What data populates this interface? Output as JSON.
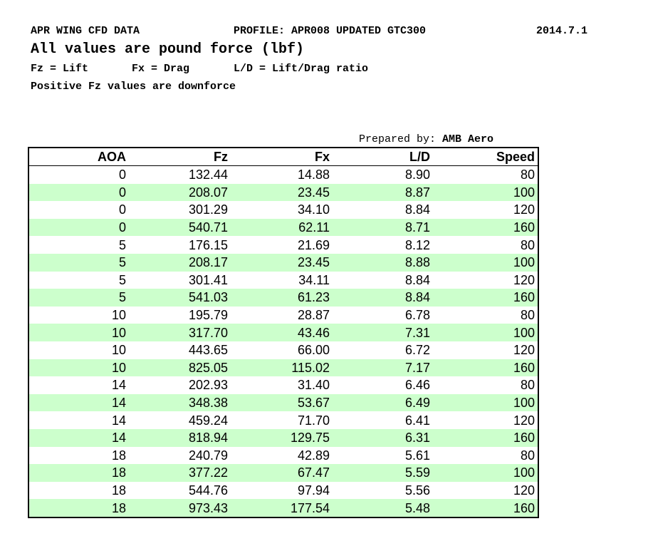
{
  "header": {
    "title": "APR WING CFD DATA",
    "profile": "PROFILE: APR008 UPDATED GTC300",
    "date": "2014.7.1",
    "units": "All values are pound force (lbf)",
    "legend": [
      "Fz = Lift",
      "Fx = Drag",
      "L/D = Lift/Drag ratio"
    ],
    "note": "Positive Fz values are downforce"
  },
  "prepared": {
    "label": "Prepared by:",
    "name": "AMB Aero"
  },
  "table": {
    "columns": [
      "AOA",
      "Fz",
      "Fx",
      "L/D",
      "Speed"
    ],
    "rows": [
      [
        "0",
        "132.44",
        "14.88",
        "8.90",
        "80"
      ],
      [
        "0",
        "208.07",
        "23.45",
        "8.87",
        "100"
      ],
      [
        "0",
        "301.29",
        "34.10",
        "8.84",
        "120"
      ],
      [
        "0",
        "540.71",
        "62.11",
        "8.71",
        "160"
      ],
      [
        "5",
        "176.15",
        "21.69",
        "8.12",
        "80"
      ],
      [
        "5",
        "208.17",
        "23.45",
        "8.88",
        "100"
      ],
      [
        "5",
        "301.41",
        "34.11",
        "8.84",
        "120"
      ],
      [
        "5",
        "541.03",
        "61.23",
        "8.84",
        "160"
      ],
      [
        "10",
        "195.79",
        "28.87",
        "6.78",
        "80"
      ],
      [
        "10",
        "317.70",
        "43.46",
        "7.31",
        "100"
      ],
      [
        "10",
        "443.65",
        "66.00",
        "6.72",
        "120"
      ],
      [
        "10",
        "825.05",
        "115.02",
        "7.17",
        "160"
      ],
      [
        "14",
        "202.93",
        "31.40",
        "6.46",
        "80"
      ],
      [
        "14",
        "348.38",
        "53.67",
        "6.49",
        "100"
      ],
      [
        "14",
        "459.24",
        "71.70",
        "6.41",
        "120"
      ],
      [
        "14",
        "818.94",
        "129.75",
        "6.31",
        "160"
      ],
      [
        "18",
        "240.79",
        "42.89",
        "5.61",
        "80"
      ],
      [
        "18",
        "377.22",
        "67.47",
        "5.59",
        "100"
      ],
      [
        "18",
        "544.76",
        "97.94",
        "5.56",
        "120"
      ],
      [
        "18",
        "973.43",
        "177.54",
        "5.48",
        "160"
      ]
    ]
  }
}
